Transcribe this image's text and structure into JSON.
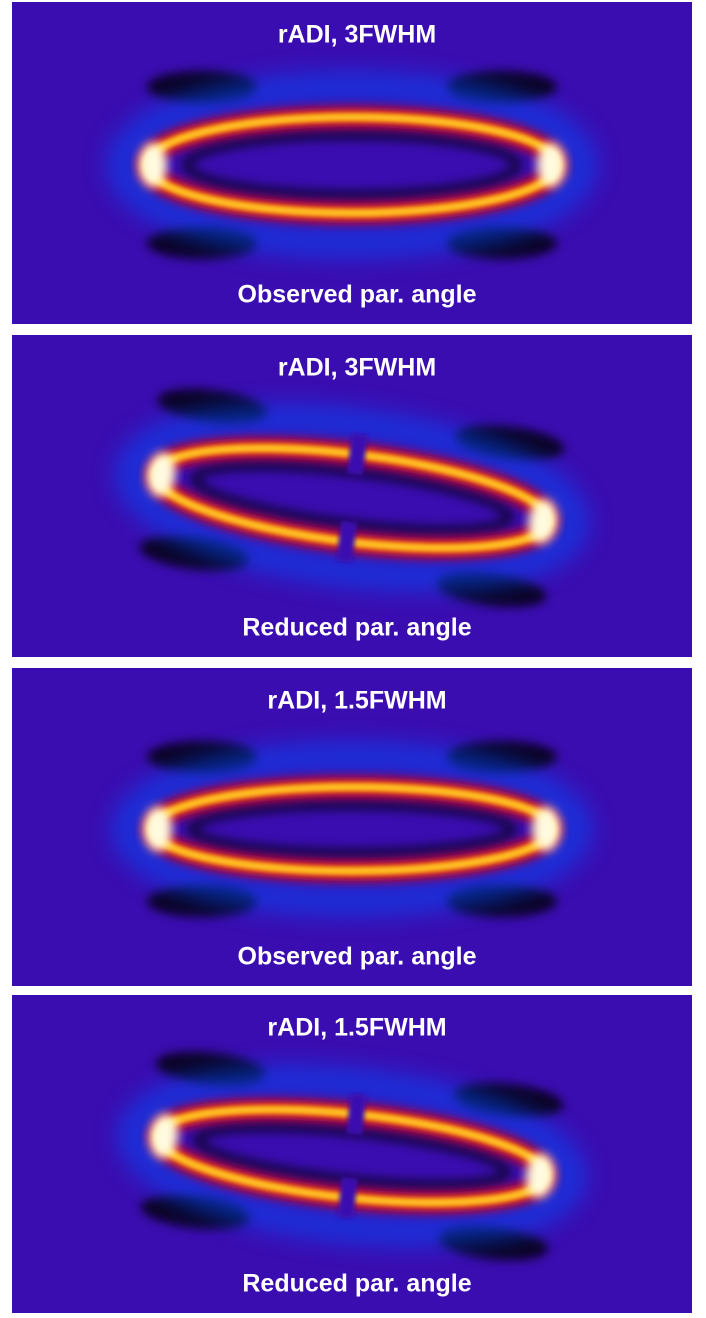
{
  "panels": [
    {
      "title": "rADI, 3FWHM",
      "caption": "Observed par. angle"
    },
    {
      "title": "rADI, 3FWHM",
      "caption": "Reduced par. angle"
    },
    {
      "title": "rADI, 1.5FWHM",
      "caption": "Observed par. angle"
    },
    {
      "title": "rADI, 1.5FWHM",
      "caption": "Reduced par. angle"
    }
  ]
}
